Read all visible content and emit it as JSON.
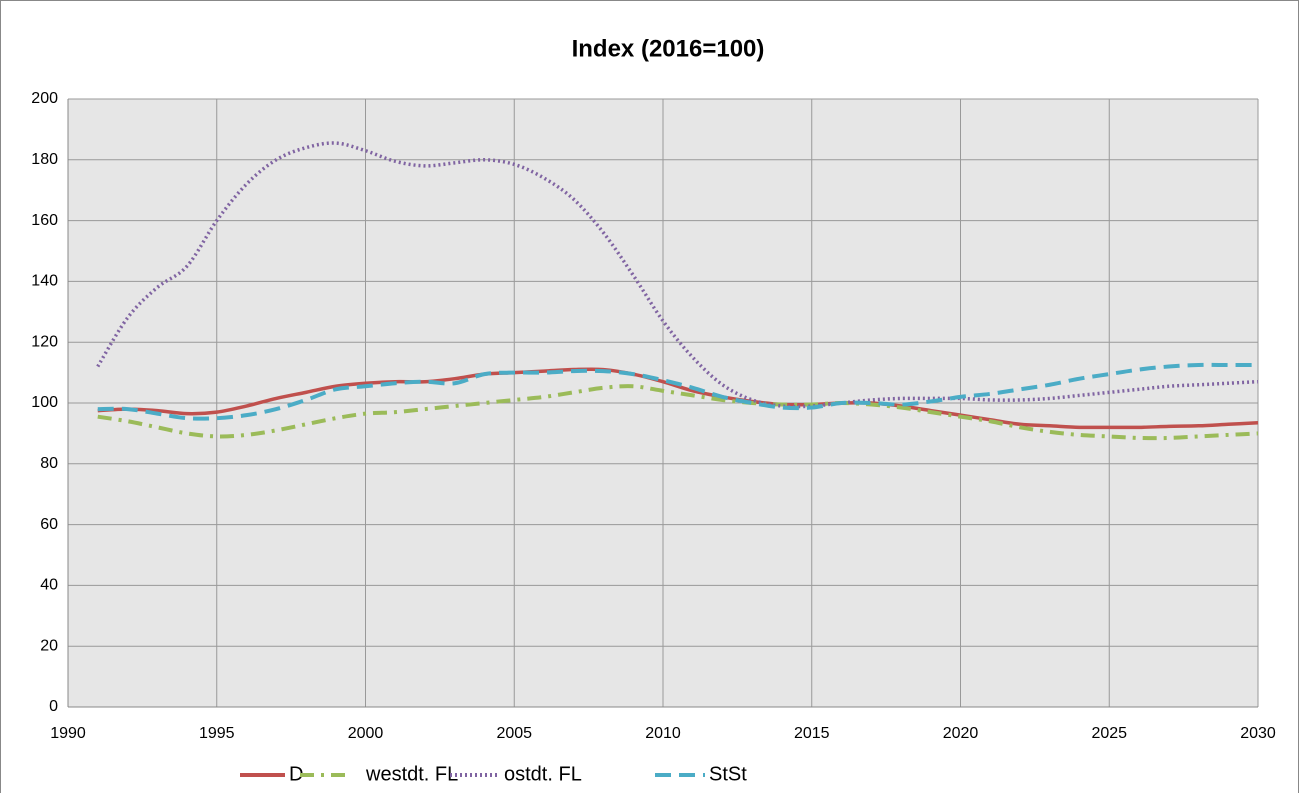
{
  "chart_data": {
    "type": "line",
    "title": "Index (2016=100)",
    "x": [
      1991,
      1992,
      1993,
      1994,
      1995,
      1996,
      1997,
      1998,
      1999,
      2000,
      2001,
      2002,
      2003,
      2004,
      2005,
      2006,
      2007,
      2008,
      2009,
      2010,
      2011,
      2012,
      2013,
      2014,
      2015,
      2016,
      2017,
      2018,
      2019,
      2020,
      2021,
      2022,
      2023,
      2024,
      2025,
      2026,
      2027,
      2028,
      2029,
      2030
    ],
    "series": [
      {
        "name": "D",
        "color": "#c0504d",
        "dash": "solid",
        "values": [
          97.5,
          98,
          97.5,
          96.5,
          97,
          99,
          101.5,
          103.5,
          105.5,
          106.5,
          107,
          107,
          108,
          109.5,
          110,
          110.5,
          111,
          111,
          109.5,
          107,
          104,
          102,
          100.5,
          99.5,
          99.5,
          100,
          100,
          99,
          97.5,
          96,
          94.5,
          93,
          92.5,
          92,
          92,
          92,
          92.3,
          92.5,
          93,
          93.5
        ]
      },
      {
        "name": "westdt. FL",
        "color": "#9bbb59",
        "dash": "dashdot",
        "values": [
          95.5,
          94,
          92,
          90,
          89,
          89.5,
          91,
          93,
          95,
          96.5,
          97,
          98,
          99,
          100,
          101,
          102,
          103.5,
          105,
          105.5,
          104,
          102.5,
          101,
          100,
          99.5,
          99.5,
          100,
          99.5,
          98.5,
          97,
          95.5,
          94,
          92,
          90.5,
          89.5,
          89,
          88.5,
          88.5,
          89,
          89.5,
          90
        ]
      },
      {
        "name": "ostdt. FL",
        "color": "#8064a2",
        "dash": "dot",
        "values": [
          112,
          128,
          138,
          145,
          160,
          172,
          180,
          184,
          185.5,
          183,
          179.5,
          178,
          179,
          180,
          178.5,
          174,
          167,
          156,
          142,
          127,
          115,
          106,
          101,
          99,
          99,
          100,
          101,
          101.5,
          101.5,
          101.5,
          101,
          101,
          101.5,
          102.5,
          103.5,
          104.5,
          105.5,
          106,
          106.5,
          107
        ]
      },
      {
        "name": "StSt",
        "color": "#4bacc6",
        "dash": "dash",
        "values": [
          98,
          98,
          96.5,
          95,
          95,
          96,
          98,
          101,
          104.5,
          105.5,
          106.5,
          107,
          106.5,
          109.5,
          110,
          110,
          110.5,
          110.5,
          109.5,
          107.5,
          105,
          102,
          100,
          98.5,
          98.5,
          100,
          100,
          99.5,
          100.5,
          102,
          103,
          104.5,
          106,
          108,
          109.5,
          111,
          112,
          112.5,
          112.5,
          112.5
        ]
      }
    ],
    "xlim": [
      1990,
      2030
    ],
    "xticks": [
      1990,
      1995,
      2000,
      2005,
      2010,
      2015,
      2020,
      2025,
      2030
    ],
    "ylim": [
      0,
      200
    ],
    "yticks": [
      0,
      20,
      40,
      60,
      80,
      100,
      120,
      140,
      160,
      180,
      200
    ],
    "grid": true,
    "legend": "bottom"
  }
}
